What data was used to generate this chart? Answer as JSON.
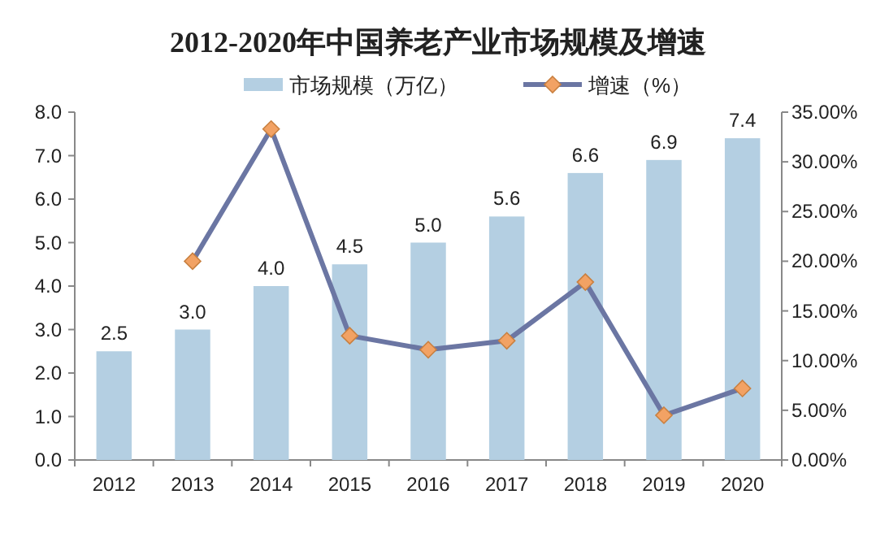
{
  "chart_data": {
    "type": "bar",
    "title": "2012-2020年中国养老产业市场规模及增速",
    "categories": [
      "2012",
      "2013",
      "2014",
      "2015",
      "2016",
      "2017",
      "2018",
      "2019",
      "2020"
    ],
    "series": [
      {
        "name": "市场规模（万亿）",
        "color": "#b4cfe2",
        "values": [
          2.5,
          3.0,
          4.0,
          4.5,
          5.0,
          5.6,
          6.6,
          6.9,
          7.4
        ],
        "value_labels": [
          "2.5",
          "3.0",
          "4.0",
          "4.5",
          "5.0",
          "5.6",
          "6.6",
          "6.9",
          "7.4"
        ]
      },
      {
        "name": "增速（%）",
        "type": "line",
        "axis": "y2",
        "color": "#6b76a3",
        "colors": [
          null,
          "#f2a264",
          "#f2a264",
          "#f2a264",
          "#f2a264",
          "#f2a264",
          "#f2a264",
          "#f2a264",
          "#f2a264"
        ],
        "marker": "diamond",
        "values": [
          null,
          20.0,
          33.3,
          12.5,
          11.1,
          12.0,
          17.9,
          4.5,
          7.2
        ]
      }
    ],
    "ylim": [
      0,
      8
    ],
    "yticks": [
      {
        "value": 0,
        "label": "0.0"
      },
      {
        "value": 1,
        "label": "1.0"
      },
      {
        "value": 2,
        "label": "2.0"
      },
      {
        "value": 3,
        "label": "3.0"
      },
      {
        "value": 4,
        "label": "4.0"
      },
      {
        "value": 5,
        "label": "5.0"
      },
      {
        "value": 6,
        "label": "6.0"
      },
      {
        "value": 7,
        "label": "7.0"
      },
      {
        "value": 8,
        "label": "8.0"
      }
    ],
    "y2lim": [
      0,
      35
    ],
    "y2ticks": [
      {
        "value": 0,
        "label": "0.00%"
      },
      {
        "value": 5,
        "label": "5.00%"
      },
      {
        "value": 10,
        "label": "10.00%"
      },
      {
        "value": 15,
        "label": "15.00%"
      },
      {
        "value": 20,
        "label": "20.00%"
      },
      {
        "value": 25,
        "label": "25.00%"
      },
      {
        "value": 30,
        "label": "30.00%"
      },
      {
        "value": 35,
        "label": "35.00%"
      }
    ],
    "legend": "top",
    "grid": false
  }
}
